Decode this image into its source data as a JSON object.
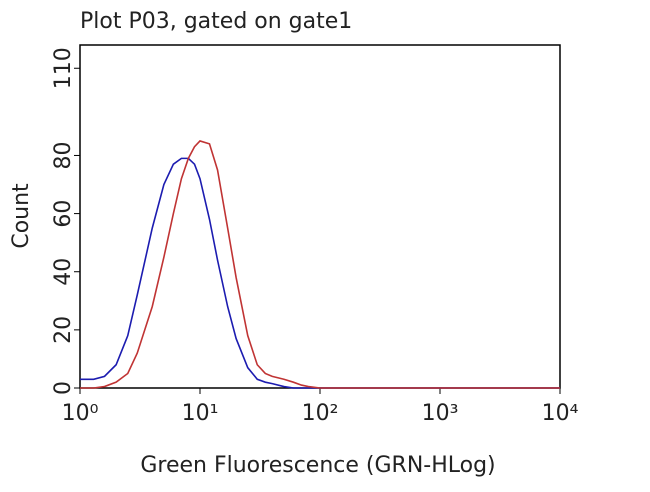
{
  "chart_data": {
    "type": "line",
    "title": "Plot P03, gated on gate1",
    "xlabel": "Green Fluorescence (GRN-HLog)",
    "ylabel": "Count",
    "xscale": "log",
    "xlim": [
      1,
      10000
    ],
    "ylim": [
      0,
      118
    ],
    "xticks": [
      {
        "value": 1,
        "label": "10⁰"
      },
      {
        "value": 10,
        "label": "10¹"
      },
      {
        "value": 100,
        "label": "10²"
      },
      {
        "value": 1000,
        "label": "10³"
      },
      {
        "value": 10000,
        "label": "10⁴"
      }
    ],
    "yticks": [
      0,
      20,
      40,
      60,
      80,
      110
    ],
    "x": [
      1,
      1.3,
      1.6,
      2,
      2.5,
      3,
      4,
      5,
      6,
      7,
      8,
      9,
      10,
      12,
      14,
      17,
      20,
      25,
      30,
      35,
      40,
      50,
      60,
      70,
      80,
      100,
      1000,
      10000
    ],
    "series": [
      {
        "color": "#1c1cb0",
        "values": [
          3,
          3,
          4,
          8,
          18,
          32,
          55,
          70,
          77,
          79,
          79,
          77,
          72,
          58,
          44,
          28,
          17,
          7,
          3,
          2,
          1.5,
          0.5,
          0,
          0,
          0,
          0,
          0,
          0
        ]
      },
      {
        "color": "#c03434",
        "values": [
          0,
          0,
          0.5,
          2,
          5,
          12,
          28,
          45,
          60,
          72,
          79,
          83,
          85,
          84,
          75,
          55,
          38,
          18,
          8,
          5,
          4,
          3,
          2,
          1,
          0.5,
          0,
          0,
          0
        ]
      }
    ]
  }
}
